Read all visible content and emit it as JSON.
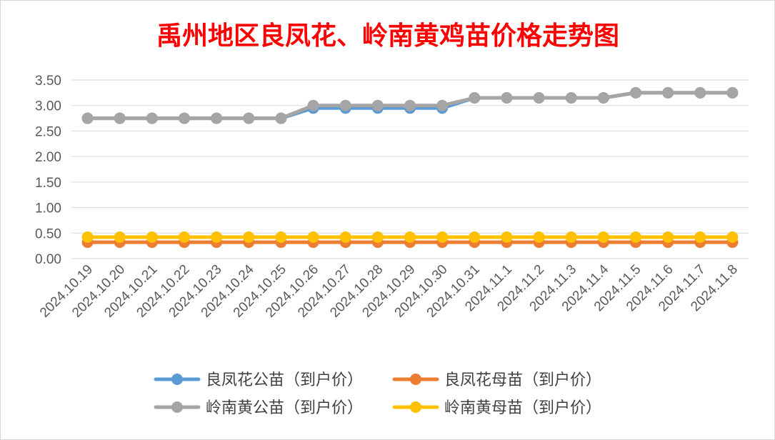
{
  "chart_data": {
    "type": "line",
    "title": "禹州地区良凤花、岭南黄鸡苗价格走势图",
    "xlabel": "",
    "ylabel": "",
    "ylim": [
      0,
      3.5
    ],
    "yticks": [
      "0.00",
      "0.50",
      "1.00",
      "1.50",
      "2.00",
      "2.50",
      "3.00",
      "3.50"
    ],
    "grid": true,
    "legend_position": "bottom",
    "x": [
      "2024.10.19",
      "2024.10.20",
      "2024.10.21",
      "2024.10.22",
      "2024.10.23",
      "2024.10.24",
      "2024.10.25",
      "2024.10.26",
      "2024.10.27",
      "2024.10.28",
      "2024.10.29",
      "2024.10.30",
      "2024.10.31",
      "2024.11.1",
      "2024.11.2",
      "2024.11.3",
      "2024.11.4",
      "2024.11.5",
      "2024.11.6",
      "2024.11.7",
      "2024.11.8"
    ],
    "series": [
      {
        "name": "良凤花公苗（到户价）",
        "color": "#5b9bd5",
        "values": [
          2.75,
          2.75,
          2.75,
          2.75,
          2.75,
          2.75,
          2.75,
          2.95,
          2.95,
          2.95,
          2.95,
          2.95,
          3.15,
          3.15,
          3.15,
          3.15,
          3.15,
          3.25,
          3.25,
          3.25,
          3.25
        ]
      },
      {
        "name": "良凤花母苗（到户价）",
        "color": "#ed7d31",
        "values": [
          0.32,
          0.32,
          0.32,
          0.32,
          0.32,
          0.32,
          0.32,
          0.32,
          0.32,
          0.32,
          0.32,
          0.32,
          0.32,
          0.32,
          0.32,
          0.32,
          0.32,
          0.32,
          0.32,
          0.32,
          0.32
        ]
      },
      {
        "name": "岭南黄公苗（到户价）",
        "color": "#a5a5a5",
        "values": [
          2.75,
          2.75,
          2.75,
          2.75,
          2.75,
          2.75,
          2.75,
          3.0,
          3.0,
          3.0,
          3.0,
          3.0,
          3.15,
          3.15,
          3.15,
          3.15,
          3.15,
          3.25,
          3.25,
          3.25,
          3.25
        ]
      },
      {
        "name": "岭南黄母苗（到户价）",
        "color": "#ffc000",
        "values": [
          0.42,
          0.42,
          0.42,
          0.42,
          0.42,
          0.42,
          0.42,
          0.42,
          0.42,
          0.42,
          0.42,
          0.42,
          0.42,
          0.42,
          0.42,
          0.42,
          0.42,
          0.42,
          0.42,
          0.42,
          0.42
        ]
      }
    ],
    "draw_order": [
      1,
      3,
      0,
      2
    ]
  },
  "colors": {
    "title": "#ff0000",
    "axis_text": "#595959",
    "gridline": "#d9d9d9",
    "legend_text": "#404040"
  }
}
